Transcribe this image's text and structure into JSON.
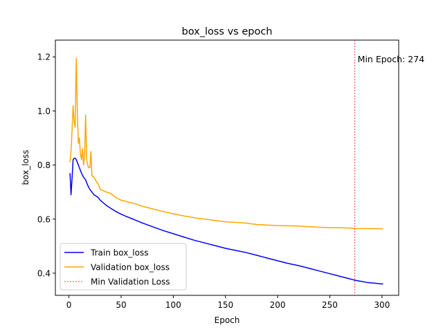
{
  "chart_data": {
    "type": "line",
    "title": "box_loss vs epoch",
    "xlabel": "Epoch",
    "ylabel": "box_loss",
    "xlim": [
      -13,
      316
    ],
    "ylim": [
      0.318,
      1.262
    ],
    "xticks": [
      0,
      50,
      100,
      150,
      200,
      250,
      300
    ],
    "yticks": [
      0.4,
      0.6,
      0.8,
      1.0,
      1.2
    ],
    "grid": false,
    "legend_position": "lower-left",
    "series": [
      {
        "name": "Train box_loss",
        "color": "#0000ff",
        "x": [
          1,
          2,
          3,
          4,
          5,
          6,
          7,
          8,
          9,
          10,
          12,
          14,
          16,
          18,
          20,
          22,
          24,
          26,
          28,
          30,
          33,
          36,
          40,
          45,
          50,
          55,
          60,
          65,
          70,
          80,
          90,
          100,
          110,
          120,
          130,
          140,
          150,
          160,
          170,
          180,
          190,
          200,
          210,
          220,
          230,
          240,
          250,
          260,
          270,
          274,
          280,
          285,
          290,
          295,
          300,
          301
        ],
        "y": [
          0.77,
          0.69,
          0.75,
          0.82,
          0.825,
          0.825,
          0.82,
          0.81,
          0.8,
          0.79,
          0.77,
          0.755,
          0.745,
          0.725,
          0.71,
          0.7,
          0.69,
          0.685,
          0.68,
          0.67,
          0.66,
          0.65,
          0.64,
          0.628,
          0.618,
          0.61,
          0.602,
          0.594,
          0.586,
          0.572,
          0.558,
          0.546,
          0.534,
          0.522,
          0.512,
          0.502,
          0.492,
          0.484,
          0.476,
          0.466,
          0.456,
          0.446,
          0.436,
          0.428,
          0.418,
          0.408,
          0.398,
          0.388,
          0.378,
          0.374,
          0.37,
          0.366,
          0.364,
          0.362,
          0.36,
          0.362
        ]
      },
      {
        "name": "Validation box_loss",
        "color": "#ffa500",
        "x": [
          1,
          2,
          3,
          4,
          5,
          6,
          7,
          8,
          9,
          10,
          11,
          12,
          13,
          14,
          15,
          16,
          17,
          18,
          19,
          20,
          21,
          22,
          24,
          26,
          28,
          30,
          33,
          36,
          40,
          45,
          50,
          55,
          60,
          65,
          70,
          80,
          90,
          100,
          110,
          120,
          130,
          140,
          150,
          160,
          170,
          180,
          190,
          200,
          210,
          220,
          230,
          240,
          250,
          260,
          270,
          274,
          280,
          290,
          300,
          301
        ],
        "y": [
          0.81,
          0.85,
          0.93,
          1.02,
          0.96,
          0.94,
          1.195,
          1.0,
          0.88,
          0.9,
          0.84,
          0.82,
          0.86,
          0.8,
          0.83,
          0.985,
          0.82,
          0.8,
          0.79,
          0.79,
          0.85,
          0.76,
          0.755,
          0.74,
          0.73,
          0.71,
          0.705,
          0.7,
          0.695,
          0.68,
          0.67,
          0.665,
          0.66,
          0.655,
          0.648,
          0.638,
          0.628,
          0.62,
          0.612,
          0.605,
          0.6,
          0.595,
          0.59,
          0.588,
          0.585,
          0.58,
          0.578,
          0.576,
          0.575,
          0.574,
          0.572,
          0.57,
          0.568,
          0.568,
          0.567,
          0.565,
          0.565,
          0.565,
          0.564,
          0.565
        ]
      }
    ],
    "reference_line": {
      "name": "Min Validation Loss",
      "x": 274,
      "color": "#ff0000",
      "label": "Min Epoch: 274"
    }
  }
}
